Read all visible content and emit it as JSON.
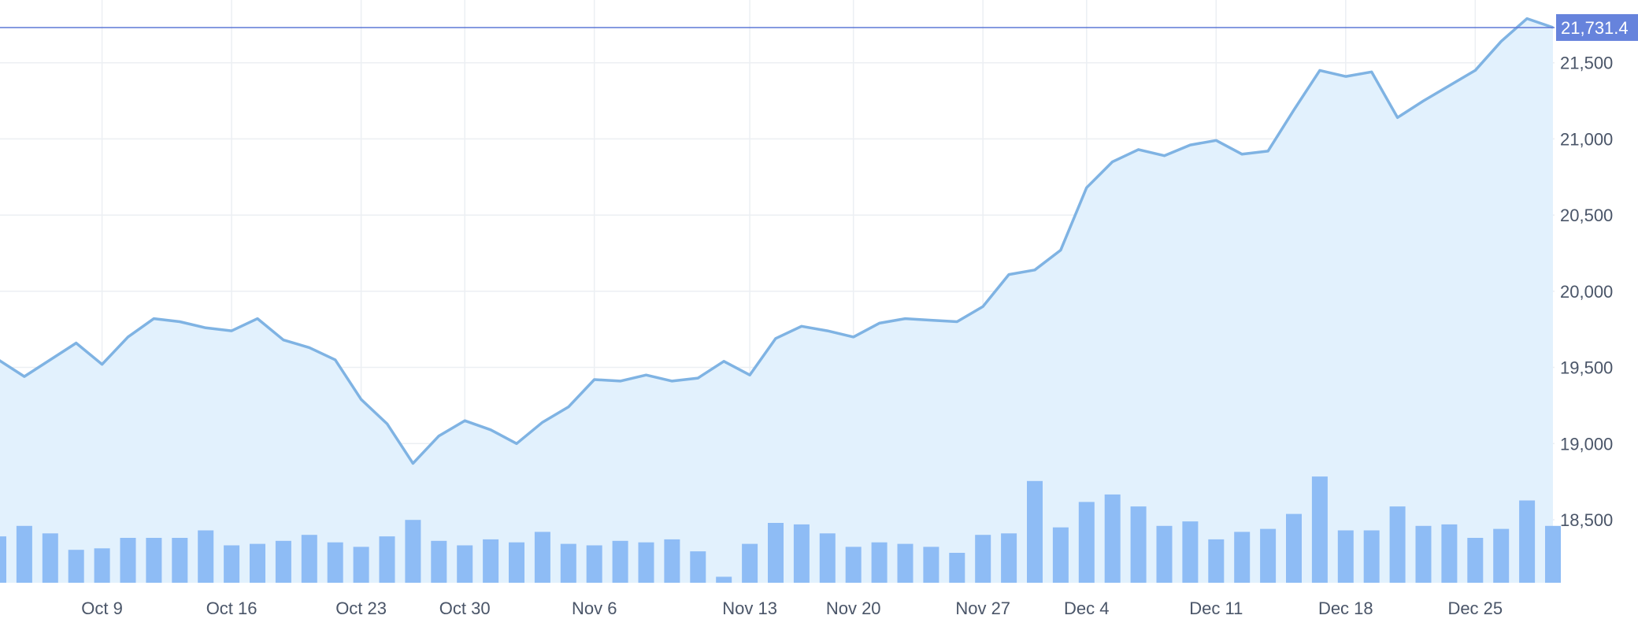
{
  "chart_data": {
    "type": "area",
    "title": "",
    "xlabel": "",
    "ylabel": "",
    "ylim": [
      18050,
      21850
    ],
    "y_ticks": [
      18500,
      19000,
      19500,
      20000,
      20500,
      21000,
      21500
    ],
    "y_tick_labels": [
      "18,500",
      "19,000",
      "19,500",
      "20,000",
      "20,500",
      "21,000",
      "21,500"
    ],
    "x_tick_labels": [
      {
        "label": "Oct 9",
        "index": 4
      },
      {
        "label": "Oct 16",
        "index": 9
      },
      {
        "label": "Oct 23",
        "index": 14
      },
      {
        "label": "Oct 30",
        "index": 18
      },
      {
        "label": "Nov 6",
        "index": 23
      },
      {
        "label": "Nov 13",
        "index": 29
      },
      {
        "label": "Nov 20",
        "index": 33
      },
      {
        "label": "Nov 27",
        "index": 38
      },
      {
        "label": "Dec 4",
        "index": 42
      },
      {
        "label": "Dec 11",
        "index": 47
      },
      {
        "label": "Dec 18",
        "index": 52
      },
      {
        "label": "Dec 25",
        "index": 57
      }
    ],
    "series": [
      {
        "values": [
          19550,
          19440,
          19550,
          19660,
          19520,
          19700,
          19820,
          19800,
          19760,
          19740,
          19820,
          19680,
          19630,
          19550,
          19290,
          19130,
          18870,
          19050,
          19150,
          19090,
          19000,
          19140,
          19240,
          19420,
          19410,
          19450,
          19410,
          19430,
          19540,
          19450,
          19690,
          19770,
          19740,
          19700,
          19790,
          19820,
          19810,
          19800,
          19900,
          20110,
          20140,
          20270,
          20680,
          20850,
          20930,
          20890,
          20960,
          20990,
          20900,
          20920,
          21190,
          21450,
          21410,
          21440,
          21140,
          21250,
          21350,
          21450,
          21640,
          21790,
          21731.4
        ]
      }
    ],
    "volume": [
      31,
      38,
      33,
      22,
      23,
      30,
      30,
      30,
      35,
      25,
      26,
      28,
      32,
      27,
      24,
      31,
      42,
      28,
      25,
      29,
      27,
      34,
      26,
      25,
      28,
      27,
      29,
      21,
      4,
      26,
      40,
      39,
      33,
      24,
      27,
      26,
      24,
      20,
      32,
      33,
      68,
      37,
      54,
      59,
      51,
      38,
      41,
      29,
      34,
      36,
      46,
      71,
      35,
      35,
      51,
      38,
      39,
      30,
      36,
      55,
      38
    ],
    "last_value": 21731.4,
    "last_value_label": "21,731.4",
    "colors": {
      "line": "#7fb3e3",
      "area": "#e2f1fd",
      "volume": "#8ebcf5",
      "price_line": "#5d78d6",
      "label_bg": "#6683dc",
      "grid": "#eceff3",
      "text": "#4a5568"
    },
    "grid": true
  }
}
